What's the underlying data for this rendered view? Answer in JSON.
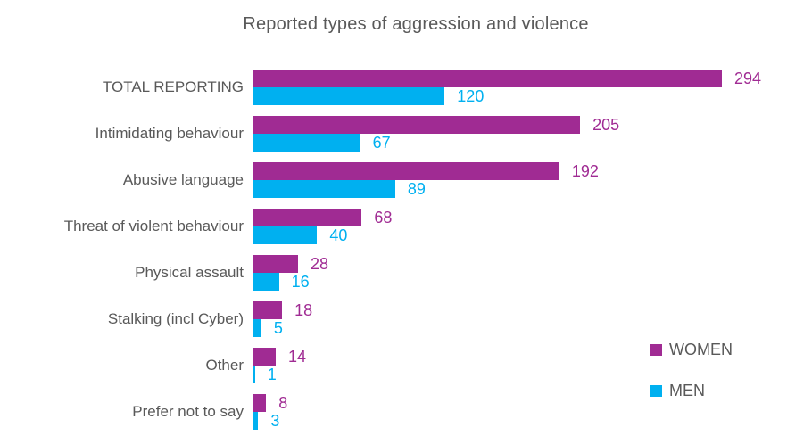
{
  "title": "Reported types of aggression and violence",
  "legend": {
    "women_label": "WOMEN",
    "men_label": "MEN",
    "position": "right"
  },
  "colors": {
    "women": "#A02B93",
    "men": "#00B0F0",
    "axis": "#D9D9D9",
    "text": "#595959"
  },
  "chart_data": {
    "type": "bar",
    "orientation": "horizontal",
    "title": "Reported types of aggression and violence",
    "categories": [
      "TOTAL REPORTING",
      "Intimidating behaviour",
      "Abusive language",
      "Threat of violent behaviour",
      "Physical assault",
      "Stalking (incl Cyber)",
      "Other",
      "Prefer not to say"
    ],
    "series": [
      {
        "name": "WOMEN",
        "color": "#A02B93",
        "values": [
          294,
          205,
          192,
          68,
          28,
          18,
          14,
          8
        ]
      },
      {
        "name": "MEN",
        "color": "#00B0F0",
        "values": [
          120,
          67,
          89,
          40,
          16,
          5,
          1,
          3
        ]
      }
    ],
    "xlim": [
      0,
      317
    ],
    "grid": false,
    "data_labels": true,
    "legend_position": "right"
  }
}
